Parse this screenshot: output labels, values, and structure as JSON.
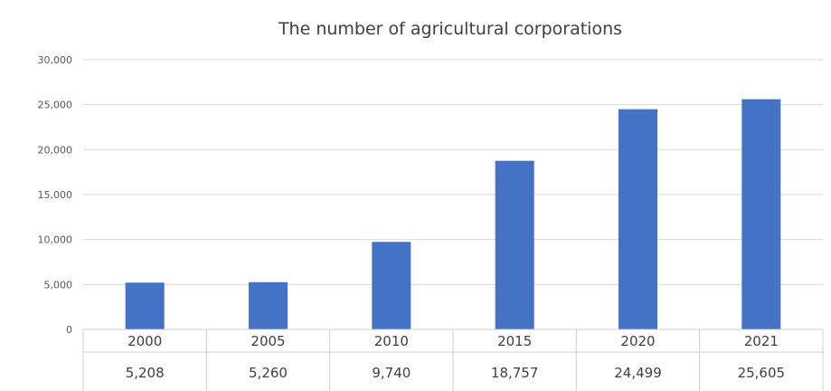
{
  "chart_data": {
    "type": "bar",
    "title": "The number of agricultural corporations",
    "categories": [
      "2000",
      "2005",
      "2010",
      "2015",
      "2020",
      "2021"
    ],
    "values": [
      5208,
      5260,
      9740,
      18757,
      24499,
      25605
    ],
    "value_labels": [
      "5,208",
      "5,260",
      "9,740",
      "18,757",
      "24,499",
      "25,605"
    ],
    "y_ticks": [
      0,
      5000,
      10000,
      15000,
      20000,
      25000,
      30000
    ],
    "y_tick_labels": [
      "0",
      "5,000",
      "10,000",
      "15,000",
      "20,000",
      "25,000",
      "30,000"
    ],
    "ylim": [
      0,
      30000
    ],
    "grid": true,
    "legend": "none",
    "data_table": true,
    "bar_color": "#4472C4"
  }
}
